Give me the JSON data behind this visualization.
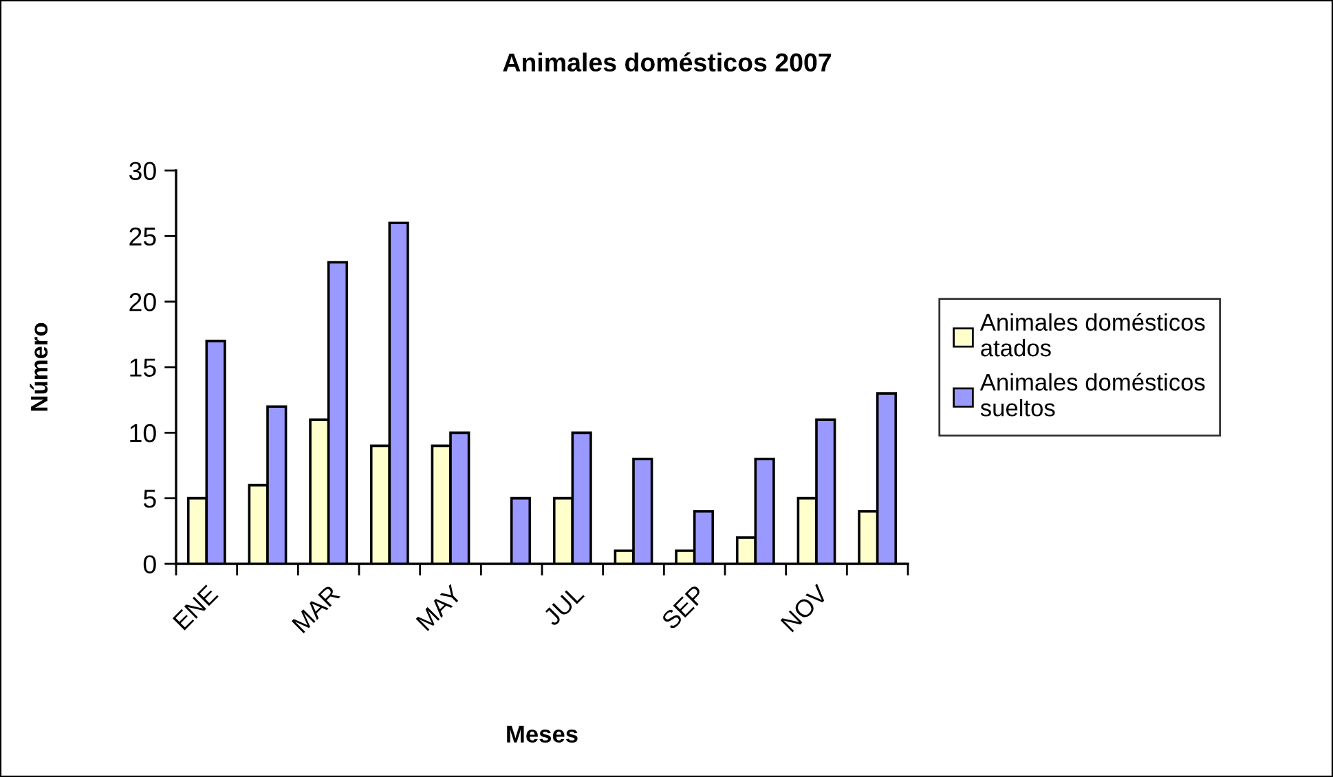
{
  "chart_data": {
    "type": "bar",
    "title": "Animales domésticos 2007",
    "xlabel": "Meses",
    "ylabel": "Número",
    "categories": [
      "ENE",
      null,
      "MAR",
      null,
      "MAY",
      null,
      "JUL",
      null,
      "SEP",
      null,
      "NOV",
      null
    ],
    "series": [
      {
        "name": "Animales domésticos atados",
        "color": "#ffffcc",
        "values": [
          5,
          6,
          11,
          9,
          9,
          null,
          5,
          1,
          1,
          2,
          5,
          4
        ]
      },
      {
        "name": "Animales domésticos sueltos",
        "color": "#9999ff",
        "values": [
          17,
          12,
          23,
          26,
          10,
          5,
          10,
          8,
          4,
          8,
          11,
          13
        ]
      }
    ],
    "ylim": [
      0,
      30
    ],
    "yticks": [
      0,
      5,
      10,
      15,
      20,
      25,
      30
    ],
    "legend": "right"
  }
}
